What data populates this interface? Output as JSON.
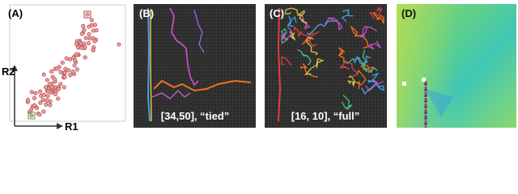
{
  "panels": [
    {
      "label": "(A)",
      "axes": {
        "x": "R1",
        "y": "R2"
      }
    },
    {
      "label": "(B)",
      "caption": "[34,50], “tied”"
    },
    {
      "label": "(C)",
      "caption": "[16, 10], “full”"
    },
    {
      "label": "(D)"
    }
  ]
}
